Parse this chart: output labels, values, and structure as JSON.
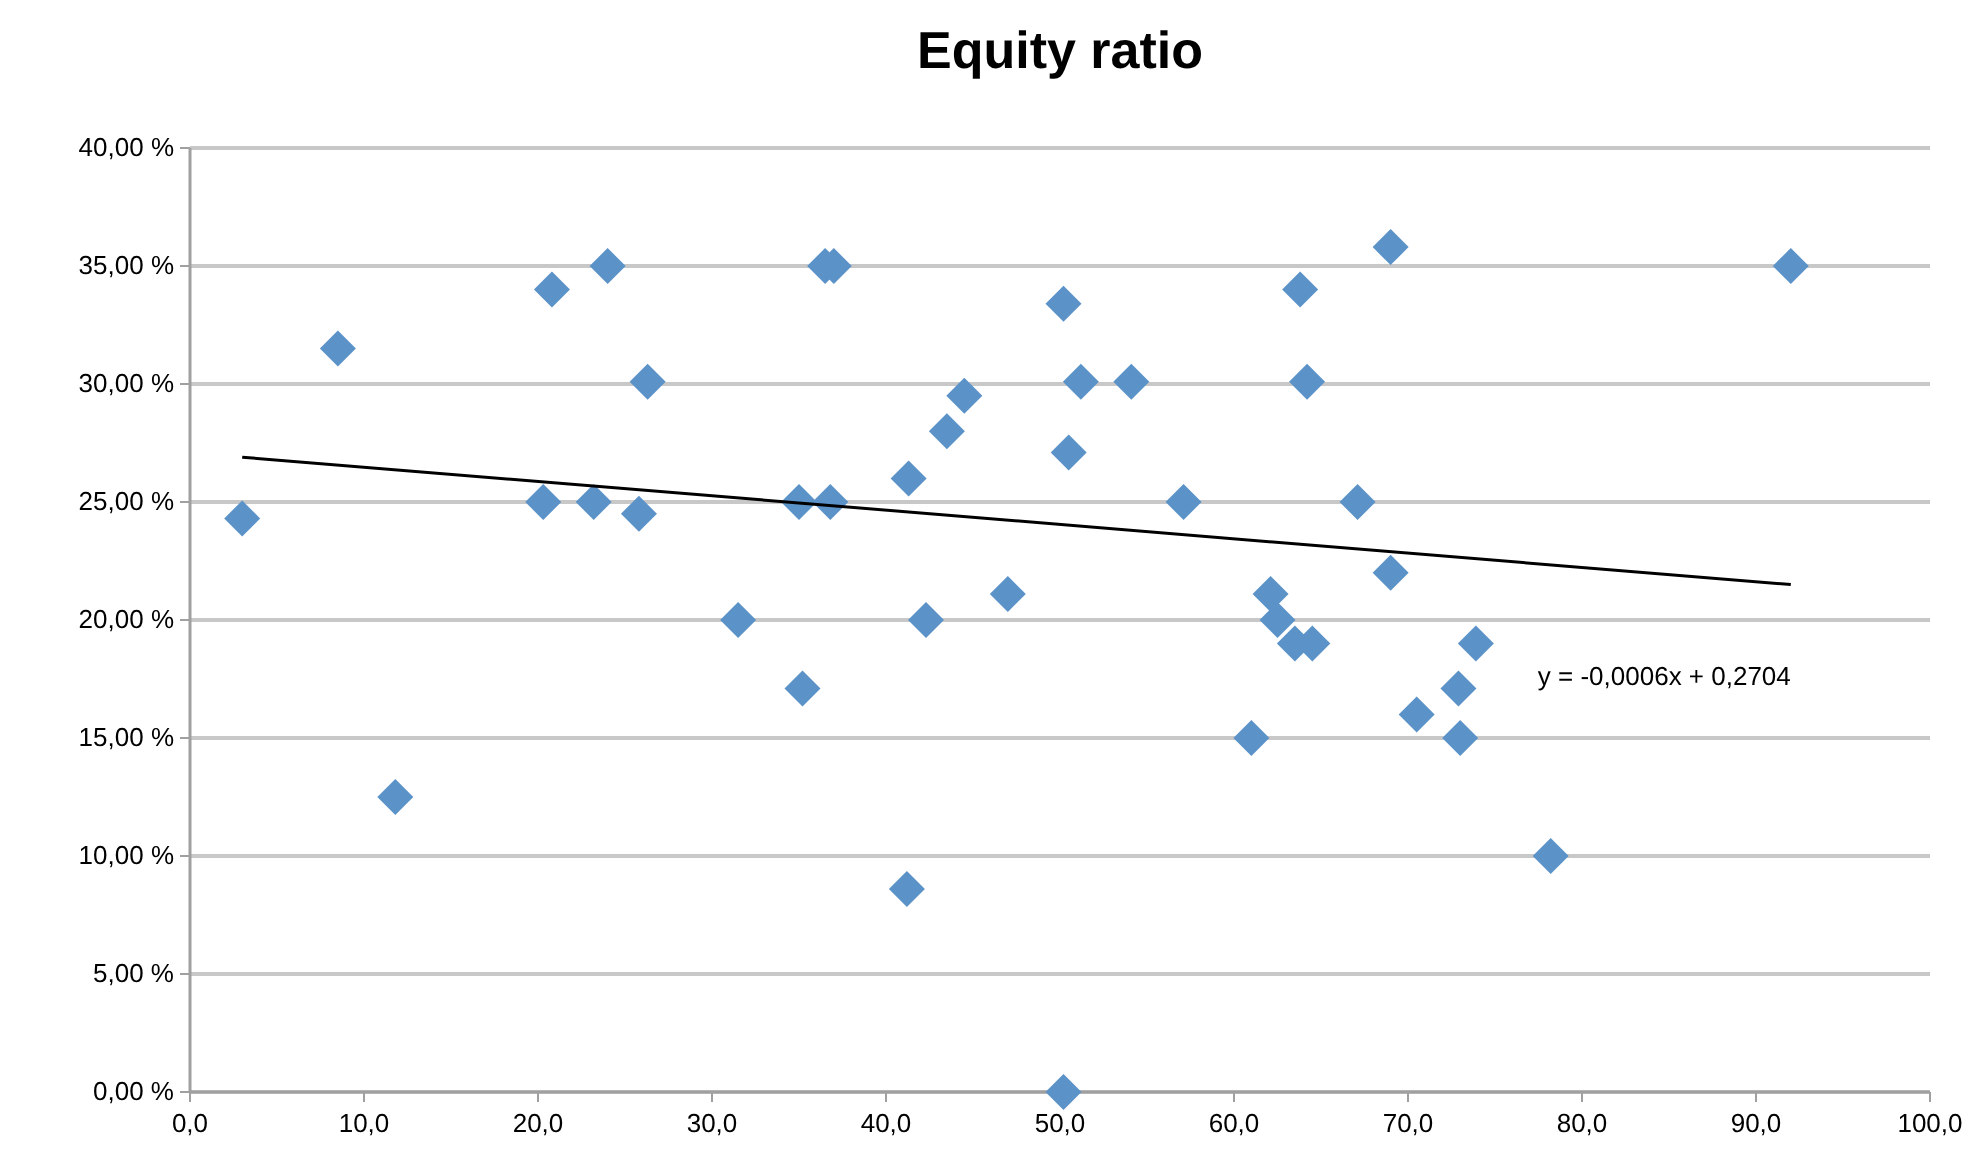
{
  "chart_data": {
    "type": "scatter",
    "title": "Equity ratio",
    "xlim": [
      0,
      100
    ],
    "xticks": [
      {
        "value": 0,
        "label": "0,0"
      },
      {
        "value": 10,
        "label": "10,0"
      },
      {
        "value": 20,
        "label": "20,0"
      },
      {
        "value": 30,
        "label": "30,0"
      },
      {
        "value": 40,
        "label": "40,0"
      },
      {
        "value": 50,
        "label": "50,0"
      },
      {
        "value": 60,
        "label": "60,0"
      },
      {
        "value": 70,
        "label": "70,0"
      },
      {
        "value": 80,
        "label": "80,0"
      },
      {
        "value": 90,
        "label": "90,0"
      },
      {
        "value": 100,
        "label": "100,0"
      }
    ],
    "ylim": [
      0,
      40
    ],
    "yticks": [
      {
        "value": 0,
        "label": "0,00 %"
      },
      {
        "value": 5,
        "label": "5,00 %"
      },
      {
        "value": 10,
        "label": "10,00 %"
      },
      {
        "value": 15,
        "label": "15,00 %"
      },
      {
        "value": 20,
        "label": "20,00 %"
      },
      {
        "value": 25,
        "label": "25,00 %"
      },
      {
        "value": 30,
        "label": "30,00 %"
      },
      {
        "value": 35,
        "label": "35,00 %"
      },
      {
        "value": 40,
        "label": "40,00 %"
      }
    ],
    "grid": "y",
    "series": [
      {
        "color": "#5b93c9",
        "marker": "diamond",
        "x": [
          3.0,
          8.5,
          11.8,
          20.3,
          20.8,
          23.2,
          24,
          25.8,
          26.3,
          31.5,
          35,
          35.2,
          36.5,
          37,
          36.8,
          41.2,
          41.3,
          42.3,
          43.5,
          44.5,
          47,
          50.2,
          50.5,
          50.2,
          51.2,
          54.1,
          57.1,
          61,
          62.1,
          62.5,
          63.5,
          64.5,
          63.8,
          64.2,
          67.1,
          69,
          69,
          70.5,
          72.9,
          73,
          73.9,
          78.2,
          92
        ],
        "values": [
          24.3,
          31.5,
          12.5,
          25,
          34,
          25,
          35,
          24.5,
          30.1,
          20,
          25,
          17.1,
          35,
          35,
          25,
          8.6,
          26,
          20,
          28,
          29.5,
          21.1,
          33.4,
          27.1,
          0,
          30.1,
          30.1,
          25,
          15,
          21.1,
          20,
          19,
          19,
          34,
          30.1,
          25,
          22,
          35.8,
          16,
          17.1,
          15,
          19,
          10,
          35
        ]
      },
      {
        "type": "line",
        "color": "#000000",
        "marker": "none",
        "x": [
          3,
          92
        ],
        "values": [
          26.9,
          21.5
        ]
      }
    ],
    "annotations": [
      "y = -0,0006x + 0,2704"
    ]
  }
}
